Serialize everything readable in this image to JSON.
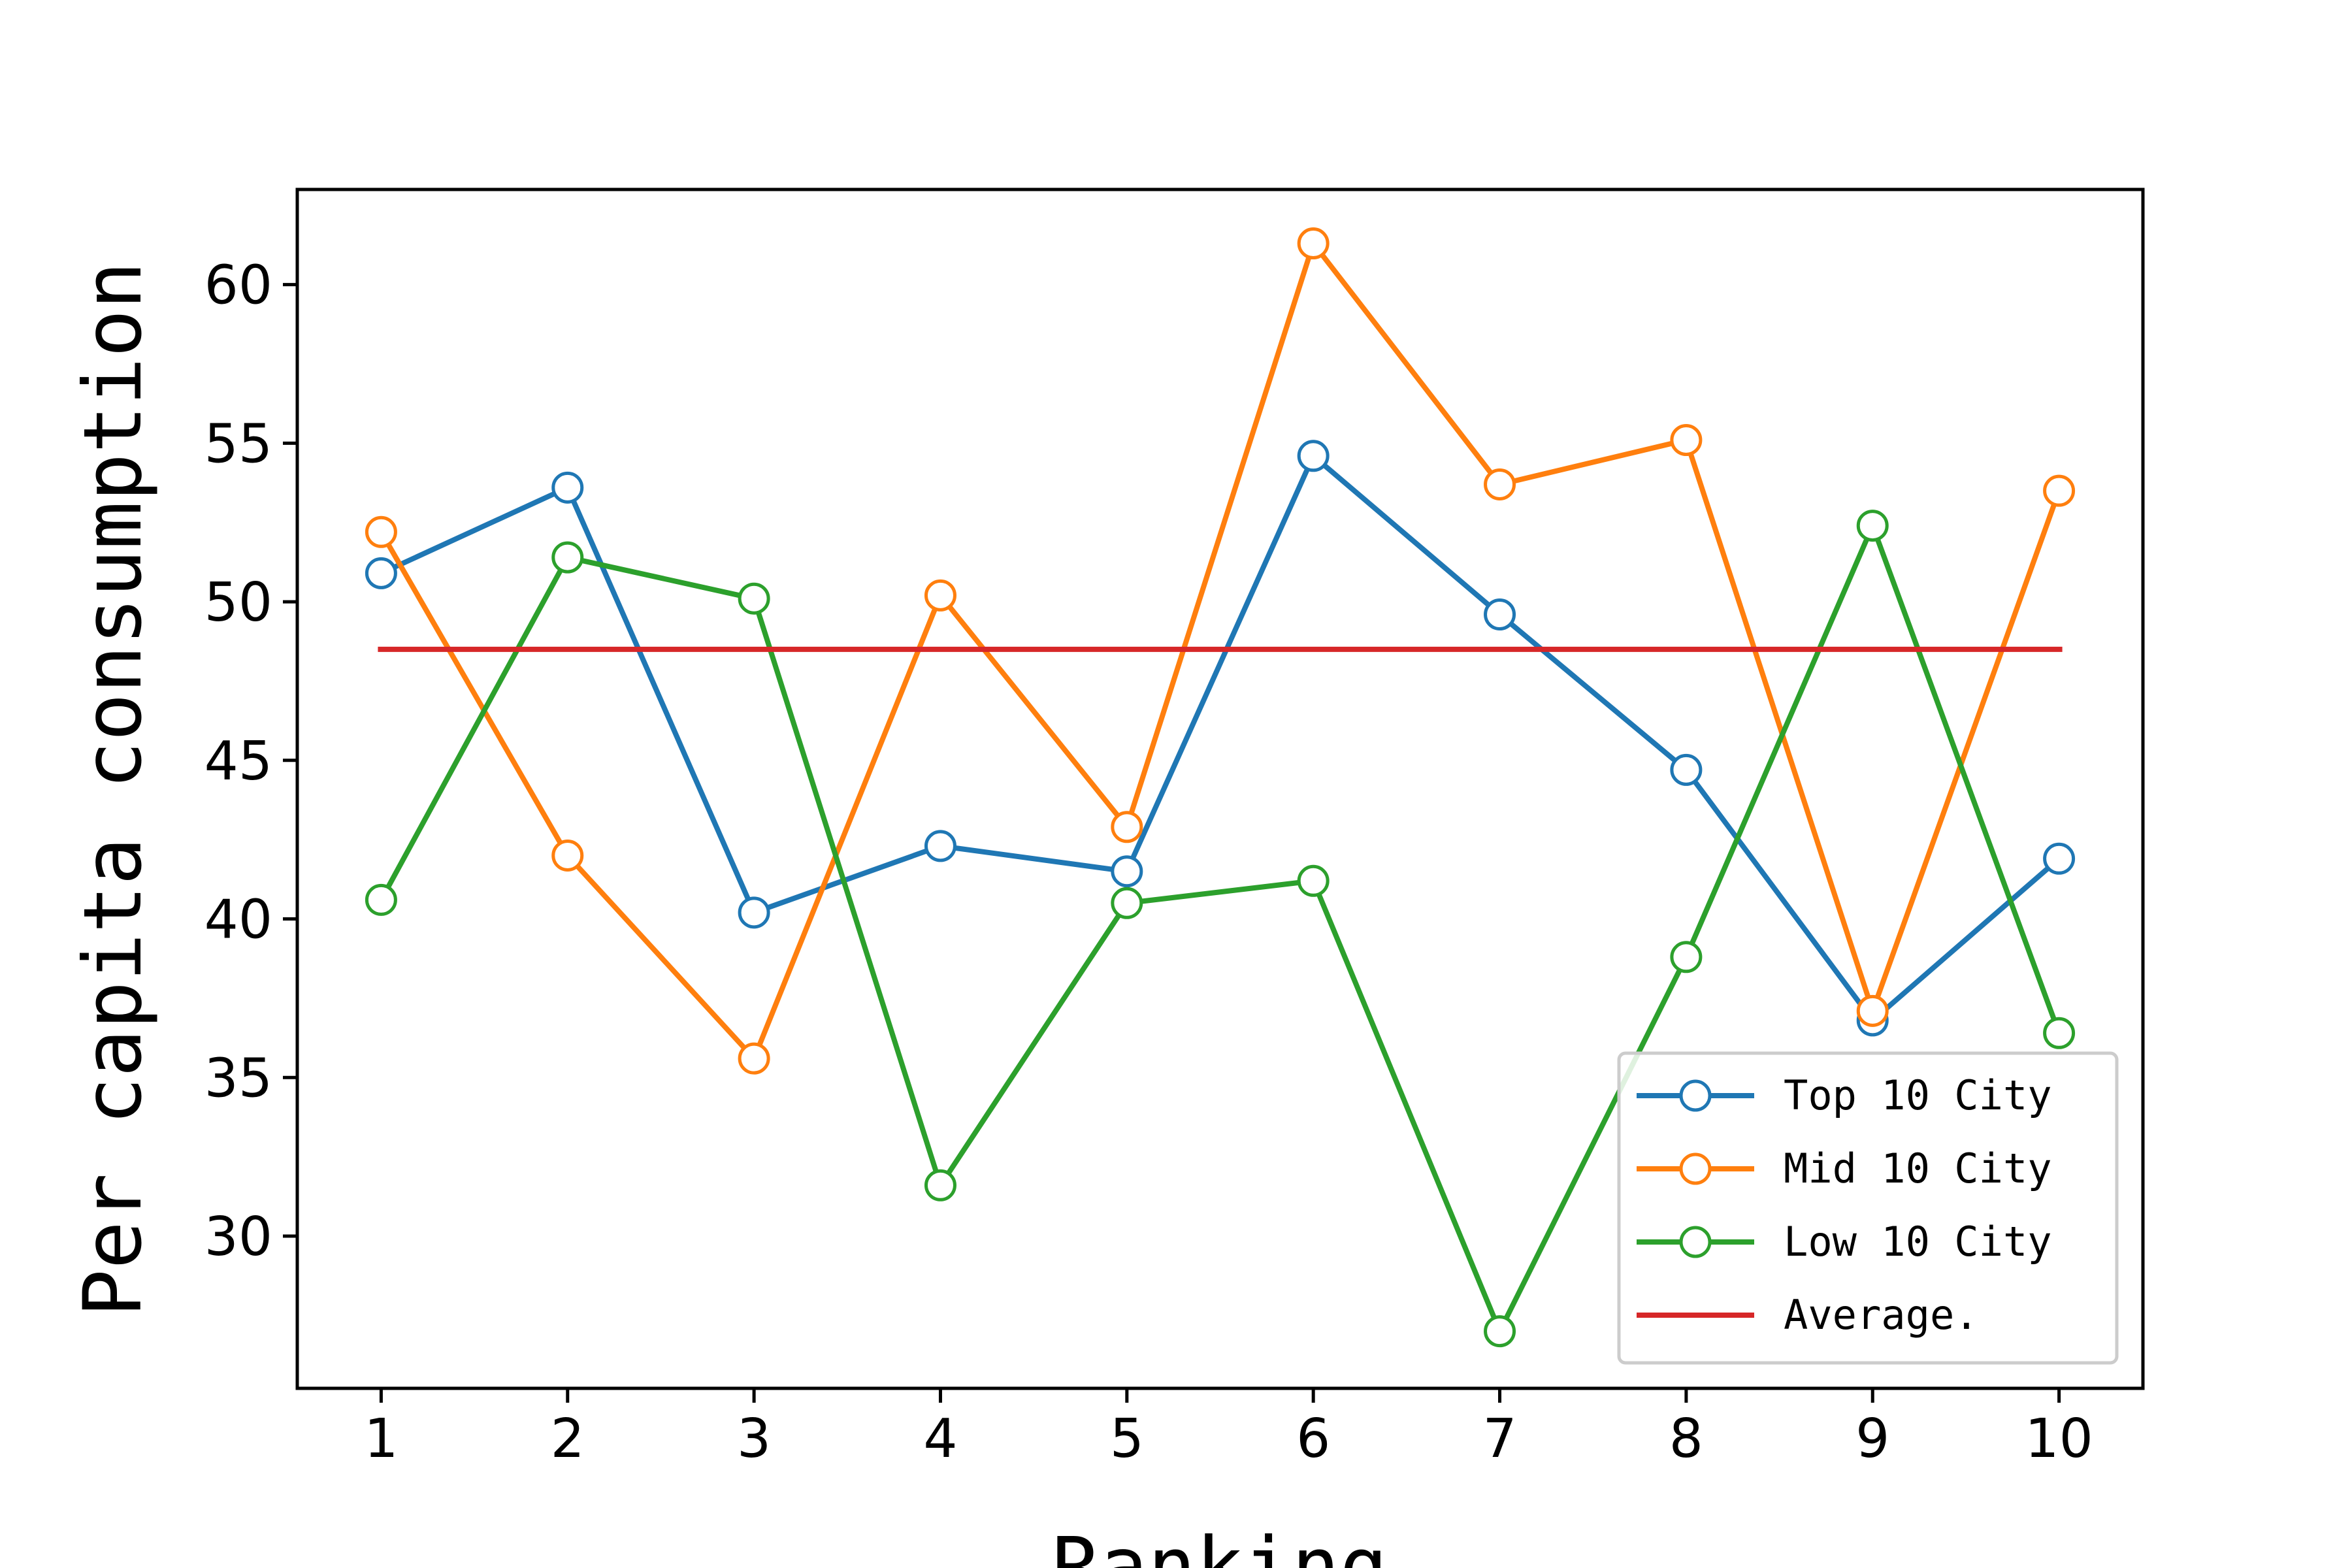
{
  "chart_data": {
    "type": "line",
    "title": "",
    "xlabel": "Ranking",
    "ylabel": "Per capita consumption",
    "x": [
      1,
      2,
      3,
      4,
      5,
      6,
      7,
      8,
      9,
      10
    ],
    "xticks": [
      "1",
      "2",
      "3",
      "4",
      "5",
      "6",
      "7",
      "8",
      "9",
      "10"
    ],
    "yticks": [
      "30",
      "35",
      "40",
      "45",
      "50",
      "55",
      "60"
    ],
    "xlim": [
      0.55,
      10.45
    ],
    "ylim": [
      25.2,
      63.0
    ],
    "grid": false,
    "legend_position": "lower right",
    "series": [
      {
        "name": "Top 10 City",
        "color": "#1f77b4",
        "marker": "circle-open",
        "values": [
          50.9,
          53.6,
          40.2,
          42.3,
          41.5,
          54.6,
          49.6,
          44.7,
          36.8,
          41.9
        ]
      },
      {
        "name": "Mid 10 City",
        "color": "#ff7f0e",
        "marker": "circle-open",
        "values": [
          52.2,
          42.0,
          35.6,
          50.2,
          42.9,
          61.3,
          53.7,
          55.1,
          37.1,
          53.5
        ]
      },
      {
        "name": "Low 10 City",
        "color": "#2ca02c",
        "marker": "circle-open",
        "values": [
          40.6,
          51.4,
          50.1,
          31.6,
          40.5,
          41.2,
          27.0,
          38.8,
          52.4,
          36.4
        ]
      },
      {
        "name": "Average.",
        "color": "#d62728",
        "marker": "none",
        "values": [
          48.5,
          48.5,
          48.5,
          48.5,
          48.5,
          48.5,
          48.5,
          48.5,
          48.5,
          48.5
        ]
      }
    ]
  }
}
